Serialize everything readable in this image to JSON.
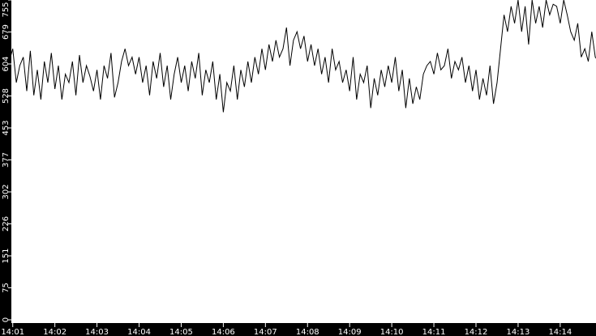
{
  "chart_data": {
    "type": "line",
    "title": "",
    "xlabel": "",
    "ylabel": "",
    "xlim": [
      "14:00:58",
      "14:14:51"
    ],
    "ylim": [
      0,
      755
    ],
    "grid": false,
    "y_ticks": [
      "0",
      "75",
      "151",
      "226",
      "302",
      "377",
      "453",
      "528",
      "604",
      "679",
      "755"
    ],
    "x_ticks": [
      "14:01",
      "14:02",
      "14:03",
      "14:04",
      "14:05",
      "14:06",
      "14:07",
      "14:08",
      "14:09",
      "14:10",
      "14:11",
      "14:12",
      "14:13",
      "14:14"
    ],
    "colors": {
      "line": "#000000",
      "axis_background": "#000000",
      "plot_background": "#ffffff",
      "tick_text": "#ffffff"
    },
    "x_start": "14:00:55",
    "x_step_seconds": 5,
    "values": [
      610,
      640,
      560,
      600,
      620,
      540,
      635,
      530,
      590,
      520,
      610,
      560,
      630,
      545,
      600,
      520,
      580,
      560,
      610,
      530,
      625,
      560,
      600,
      575,
      540,
      590,
      520,
      600,
      570,
      630,
      525,
      560,
      610,
      640,
      600,
      620,
      580,
      620,
      560,
      600,
      530,
      610,
      570,
      630,
      550,
      600,
      520,
      580,
      620,
      560,
      600,
      540,
      610,
      570,
      630,
      530,
      590,
      560,
      610,
      520,
      580,
      490,
      560,
      540,
      600,
      520,
      590,
      550,
      610,
      560,
      620,
      580,
      640,
      590,
      650,
      610,
      660,
      620,
      640,
      690,
      600,
      660,
      680,
      640,
      670,
      610,
      650,
      600,
      640,
      580,
      620,
      560,
      640,
      590,
      610,
      560,
      590,
      540,
      620,
      520,
      580,
      560,
      600,
      500,
      570,
      530,
      590,
      550,
      600,
      560,
      620,
      540,
      590,
      500,
      570,
      510,
      550,
      520,
      580,
      600,
      610,
      580,
      630,
      590,
      600,
      640,
      570,
      610,
      590,
      620,
      560,
      600,
      540,
      590,
      520,
      570,
      530,
      600,
      510,
      560,
      640,
      720,
      680,
      740,
      700,
      755,
      680,
      740,
      650,
      755,
      700,
      740,
      690,
      755,
      720,
      745,
      740,
      700,
      755,
      720,
      680,
      660,
      700,
      620,
      640,
      610,
      680,
      620,
      610
    ]
  }
}
